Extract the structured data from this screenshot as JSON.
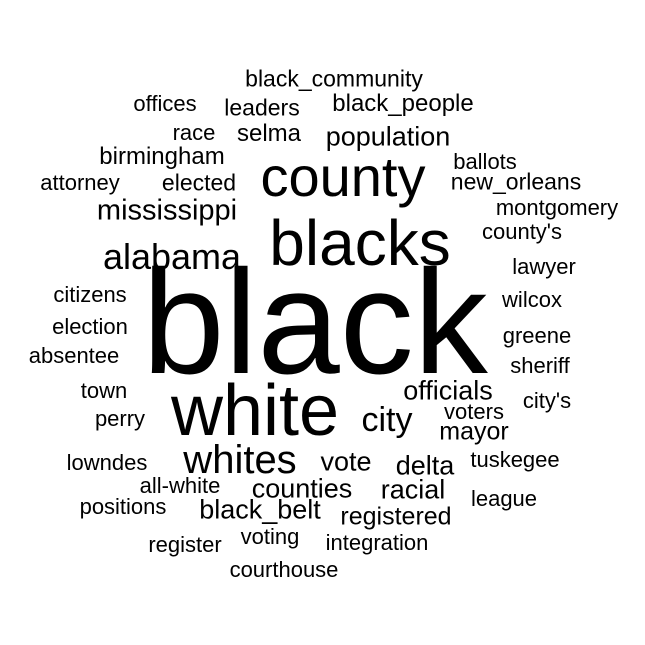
{
  "background": "#ffffff",
  "text_color": "#000000",
  "words": [
    {
      "text": "black",
      "weight": 1.0
    },
    {
      "text": "white",
      "weight": 0.5
    },
    {
      "text": "blacks",
      "weight": 0.45
    },
    {
      "text": "county",
      "weight": 0.42
    },
    {
      "text": "whites",
      "weight": 0.28
    },
    {
      "text": "alabama",
      "weight": 0.27
    },
    {
      "text": "mississippi",
      "weight": 0.24
    },
    {
      "text": "city",
      "weight": 0.24
    },
    {
      "text": "population",
      "weight": 0.2
    },
    {
      "text": "officials",
      "weight": 0.2
    },
    {
      "text": "vote",
      "weight": 0.2
    },
    {
      "text": "delta",
      "weight": 0.2
    },
    {
      "text": "counties",
      "weight": 0.2
    },
    {
      "text": "racial",
      "weight": 0.2
    },
    {
      "text": "mayor",
      "weight": 0.19
    },
    {
      "text": "black_belt",
      "weight": 0.19
    },
    {
      "text": "registered",
      "weight": 0.19
    },
    {
      "text": "selma",
      "weight": 0.19
    },
    {
      "text": "birmingham",
      "weight": 0.18
    },
    {
      "text": "black_people",
      "weight": 0.18
    },
    {
      "text": "black_community",
      "weight": 0.17
    },
    {
      "text": "leaders",
      "weight": 0.17
    },
    {
      "text": "elected",
      "weight": 0.17
    },
    {
      "text": "new_orleans",
      "weight": 0.17
    },
    {
      "text": "offices",
      "weight": 0.16
    },
    {
      "text": "race",
      "weight": 0.16
    },
    {
      "text": "attorney",
      "weight": 0.16
    },
    {
      "text": "ballots",
      "weight": 0.16
    },
    {
      "text": "montgomery",
      "weight": 0.16
    },
    {
      "text": "county's",
      "weight": 0.16
    },
    {
      "text": "lawyer",
      "weight": 0.16
    },
    {
      "text": "citizens",
      "weight": 0.16
    },
    {
      "text": "wilcox",
      "weight": 0.16
    },
    {
      "text": "election",
      "weight": 0.16
    },
    {
      "text": "greene",
      "weight": 0.16
    },
    {
      "text": "absentee",
      "weight": 0.16
    },
    {
      "text": "sheriff",
      "weight": 0.16
    },
    {
      "text": "town",
      "weight": 0.16
    },
    {
      "text": "city's",
      "weight": 0.16
    },
    {
      "text": "perry",
      "weight": 0.16
    },
    {
      "text": "voters",
      "weight": 0.16
    },
    {
      "text": "lowndes",
      "weight": 0.16
    },
    {
      "text": "tuskegee",
      "weight": 0.16
    },
    {
      "text": "all-white",
      "weight": 0.16
    },
    {
      "text": "league",
      "weight": 0.16
    },
    {
      "text": "positions",
      "weight": 0.16
    },
    {
      "text": "register",
      "weight": 0.16
    },
    {
      "text": "voting",
      "weight": 0.16
    },
    {
      "text": "integration",
      "weight": 0.16
    },
    {
      "text": "courthouse",
      "weight": 0.16
    }
  ]
}
